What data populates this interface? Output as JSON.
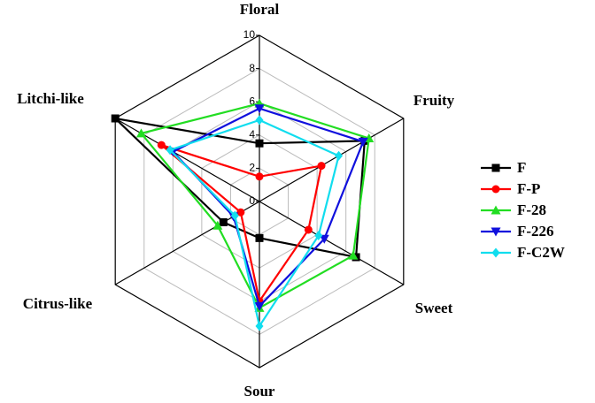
{
  "chart_data": {
    "type": "radar",
    "categories": [
      "Floral",
      "Fruity",
      "Sweet",
      "Sour",
      "Citrus-like",
      "Litchi-like"
    ],
    "rlim": [
      0,
      10
    ],
    "rticks": [
      0,
      2,
      4,
      6,
      8,
      10
    ],
    "grid": true,
    "legend": "right",
    "series": [
      {
        "name": "F",
        "color": "#000000",
        "marker": "square",
        "values": [
          3.5,
          7.3,
          6.7,
          2.2,
          2.5,
          10.0
        ]
      },
      {
        "name": "F-P",
        "color": "#ff0000",
        "marker": "circle",
        "values": [
          1.5,
          4.3,
          3.4,
          6.0,
          1.3,
          6.8
        ]
      },
      {
        "name": "F-28",
        "color": "#22dd22",
        "marker": "triangle-up",
        "values": [
          5.9,
          7.6,
          6.5,
          6.4,
          2.9,
          8.2
        ]
      },
      {
        "name": "F-226",
        "color": "#1010dd",
        "marker": "triangle-down",
        "values": [
          5.6,
          7.2,
          4.5,
          6.3,
          1.8,
          6.0
        ]
      },
      {
        "name": "F-C2W",
        "color": "#11ddee",
        "marker": "diamond",
        "values": [
          4.9,
          5.5,
          4.1,
          7.5,
          1.7,
          6.2
        ]
      }
    ]
  }
}
